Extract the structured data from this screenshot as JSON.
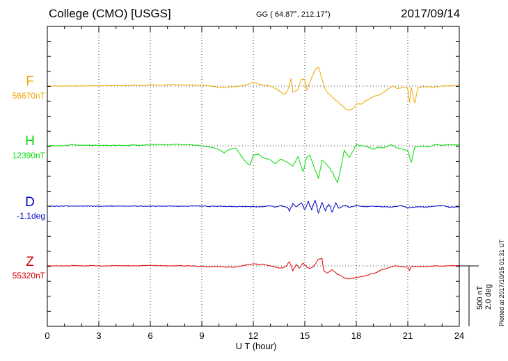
{
  "header": {
    "station": "College (CMO)  [USGS]",
    "coords": "GG ( 64.87°, 212.17°)",
    "date": "2017/09/14"
  },
  "plotted_note": "Plotted at 2017/10/15 01:31  UT",
  "scale": {
    "nt": "500 nT",
    "deg": "2.0 deg"
  },
  "colors": {
    "F": "#f0a800",
    "H": "#00dd00",
    "D": "#0000cc",
    "Z": "#dd0000"
  },
  "chart_data": {
    "type": "line",
    "xlabel": "U T (hour)",
    "xlim": [
      0,
      24
    ],
    "xticks": [
      "0",
      "3",
      "6",
      "9",
      "12",
      "15",
      "18",
      "21",
      "24"
    ],
    "grid": true,
    "series": [
      {
        "key": "F",
        "name": "F",
        "baseline_label": "56670nT",
        "units": "nT",
        "points": [
          [
            0,
            0
          ],
          [
            0.5,
            0
          ],
          [
            1,
            0
          ],
          [
            1.5,
            2
          ],
          [
            2,
            1
          ],
          [
            2.5,
            3
          ],
          [
            3,
            2
          ],
          [
            3.5,
            3
          ],
          [
            4,
            4
          ],
          [
            4.5,
            4
          ],
          [
            5,
            8
          ],
          [
            5.5,
            6
          ],
          [
            6,
            10
          ],
          [
            6.5,
            8
          ],
          [
            7,
            10
          ],
          [
            7.5,
            12
          ],
          [
            8,
            10
          ],
          [
            8.5,
            8
          ],
          [
            9,
            10
          ],
          [
            9.5,
            0
          ],
          [
            10,
            -10
          ],
          [
            10.5,
            -10
          ],
          [
            11,
            -5
          ],
          [
            11.5,
            5
          ],
          [
            12,
            30
          ],
          [
            12.2,
            20
          ],
          [
            12.5,
            10
          ],
          [
            13,
            0
          ],
          [
            13.3,
            -20
          ],
          [
            13.5,
            -40
          ],
          [
            13.8,
            -70
          ],
          [
            14,
            -40
          ],
          [
            14.2,
            60
          ],
          [
            14.3,
            -50
          ],
          [
            14.6,
            -30
          ],
          [
            14.8,
            60
          ],
          [
            15,
            50
          ],
          [
            15.1,
            -40
          ],
          [
            15.3,
            30
          ],
          [
            15.6,
            140
          ],
          [
            15.8,
            160
          ],
          [
            16,
            60
          ],
          [
            16.2,
            -30
          ],
          [
            16.5,
            -80
          ],
          [
            16.8,
            -120
          ],
          [
            17,
            -140
          ],
          [
            17.2,
            -170
          ],
          [
            17.5,
            -200
          ],
          [
            17.8,
            -190
          ],
          [
            18,
            -150
          ],
          [
            18.3,
            -150
          ],
          [
            18.6,
            -120
          ],
          [
            19,
            -90
          ],
          [
            19.4,
            -70
          ],
          [
            19.8,
            -30
          ],
          [
            20.1,
            0
          ],
          [
            20.4,
            -20
          ],
          [
            20.8,
            -10
          ],
          [
            21,
            -20
          ],
          [
            21.1,
            -130
          ],
          [
            21.2,
            -10
          ],
          [
            21.4,
            -140
          ],
          [
            21.6,
            -10
          ],
          [
            22,
            -5
          ],
          [
            22.5,
            -10
          ],
          [
            23,
            0
          ],
          [
            23.5,
            2
          ],
          [
            24,
            10
          ]
        ]
      },
      {
        "key": "H",
        "name": "H",
        "baseline_label": "12390nT",
        "units": "nT",
        "points": [
          [
            0,
            0
          ],
          [
            0.5,
            0
          ],
          [
            1,
            2
          ],
          [
            1.5,
            8
          ],
          [
            2,
            6
          ],
          [
            2.5,
            4
          ],
          [
            3,
            5
          ],
          [
            3.5,
            2
          ],
          [
            4,
            5
          ],
          [
            4.5,
            3
          ],
          [
            5,
            6
          ],
          [
            5.5,
            6
          ],
          [
            6,
            8
          ],
          [
            6.5,
            10
          ],
          [
            7,
            8
          ],
          [
            7.5,
            12
          ],
          [
            8,
            10
          ],
          [
            8.5,
            8
          ],
          [
            9,
            0
          ],
          [
            9.5,
            -10
          ],
          [
            10,
            -30
          ],
          [
            10.3,
            -60
          ],
          [
            10.6,
            -30
          ],
          [
            11,
            -20
          ],
          [
            11.3,
            -90
          ],
          [
            11.6,
            -140
          ],
          [
            11.8,
            -160
          ],
          [
            12,
            -80
          ],
          [
            12.3,
            -70
          ],
          [
            12.6,
            -100
          ],
          [
            13,
            -120
          ],
          [
            13.3,
            -150
          ],
          [
            13.6,
            -110
          ],
          [
            14,
            -140
          ],
          [
            14.3,
            -170
          ],
          [
            14.6,
            -90
          ],
          [
            14.9,
            -220
          ],
          [
            15.1,
            -100
          ],
          [
            15.3,
            -80
          ],
          [
            15.6,
            -200
          ],
          [
            15.8,
            -270
          ],
          [
            16,
            -120
          ],
          [
            16.3,
            -160
          ],
          [
            16.6,
            -220
          ],
          [
            16.9,
            -310
          ],
          [
            17.1,
            -190
          ],
          [
            17.3,
            -40
          ],
          [
            17.6,
            -100
          ],
          [
            18,
            10
          ],
          [
            18.3,
            0
          ],
          [
            18.6,
            -5
          ],
          [
            19,
            -30
          ],
          [
            19.3,
            -10
          ],
          [
            19.6,
            -20
          ],
          [
            20,
            10
          ],
          [
            20.4,
            -20
          ],
          [
            20.7,
            -30
          ],
          [
            21,
            -40
          ],
          [
            21.2,
            -140
          ],
          [
            21.4,
            -10
          ],
          [
            21.8,
            -5
          ],
          [
            22.2,
            -10
          ],
          [
            22.6,
            10
          ],
          [
            23,
            5
          ],
          [
            23.5,
            10
          ],
          [
            24,
            5
          ]
        ]
      },
      {
        "key": "D",
        "name": "D",
        "baseline_label": "-1.1deg",
        "units": "deg",
        "points": [
          [
            0,
            0
          ],
          [
            0.5,
            0
          ],
          [
            1,
            1
          ],
          [
            1.5,
            0
          ],
          [
            2,
            0
          ],
          [
            2.5,
            1
          ],
          [
            3,
            0
          ],
          [
            3.5,
            0
          ],
          [
            4,
            1
          ],
          [
            4.5,
            0
          ],
          [
            5,
            0
          ],
          [
            5.5,
            1
          ],
          [
            6,
            0
          ],
          [
            6.5,
            0
          ],
          [
            7,
            1
          ],
          [
            7.5,
            0
          ],
          [
            8,
            0
          ],
          [
            8.5,
            2
          ],
          [
            9,
            0
          ],
          [
            9.5,
            -2
          ],
          [
            10,
            -1
          ],
          [
            10.5,
            -2
          ],
          [
            11,
            -3
          ],
          [
            11.5,
            -2
          ],
          [
            12,
            -4
          ],
          [
            12.5,
            -5
          ],
          [
            13,
            5
          ],
          [
            13.3,
            -10
          ],
          [
            13.6,
            5
          ],
          [
            14,
            -10
          ],
          [
            14.1,
            -40
          ],
          [
            14.3,
            20
          ],
          [
            14.5,
            -5
          ],
          [
            14.8,
            30
          ],
          [
            15,
            -30
          ],
          [
            15.2,
            40
          ],
          [
            15.4,
            -30
          ],
          [
            15.6,
            50
          ],
          [
            15.8,
            -60
          ],
          [
            16,
            30
          ],
          [
            16.2,
            -40
          ],
          [
            16.4,
            20
          ],
          [
            16.6,
            -50
          ],
          [
            16.8,
            30
          ],
          [
            17,
            -20
          ],
          [
            17.3,
            10
          ],
          [
            17.6,
            -10
          ],
          [
            18,
            5
          ],
          [
            18.5,
            -5
          ],
          [
            19,
            0
          ],
          [
            19.5,
            -5
          ],
          [
            20,
            -8
          ],
          [
            20.3,
            -2
          ],
          [
            20.6,
            5
          ],
          [
            21,
            -15
          ],
          [
            21.3,
            -10
          ],
          [
            21.6,
            -5
          ],
          [
            22,
            -8
          ],
          [
            22.5,
            0
          ],
          [
            23,
            5
          ],
          [
            23.5,
            -10
          ],
          [
            24,
            -5
          ]
        ]
      },
      {
        "key": "Z",
        "name": "Z",
        "baseline_label": "55320nT",
        "units": "nT",
        "points": [
          [
            0,
            0
          ],
          [
            0.5,
            0
          ],
          [
            1,
            0
          ],
          [
            1.5,
            2
          ],
          [
            2,
            0
          ],
          [
            2.5,
            2
          ],
          [
            3,
            0
          ],
          [
            3.5,
            0
          ],
          [
            4,
            2
          ],
          [
            4.5,
            0
          ],
          [
            5,
            0
          ],
          [
            5.5,
            2
          ],
          [
            6,
            4
          ],
          [
            6.5,
            2
          ],
          [
            7,
            0
          ],
          [
            7.5,
            2
          ],
          [
            8,
            0
          ],
          [
            8.5,
            0
          ],
          [
            9,
            -5
          ],
          [
            9.5,
            -8
          ],
          [
            10,
            -5
          ],
          [
            10.5,
            -10
          ],
          [
            11,
            -8
          ],
          [
            11.5,
            5
          ],
          [
            12,
            20
          ],
          [
            12.3,
            10
          ],
          [
            12.6,
            15
          ],
          [
            13,
            0
          ],
          [
            13.3,
            -10
          ],
          [
            13.6,
            -20
          ],
          [
            13.9,
            -5
          ],
          [
            14.1,
            35
          ],
          [
            14.3,
            -40
          ],
          [
            14.5,
            10
          ],
          [
            14.7,
            -20
          ],
          [
            14.9,
            25
          ],
          [
            15.1,
            -10
          ],
          [
            15.3,
            -20
          ],
          [
            15.5,
            -5
          ],
          [
            15.8,
            55
          ],
          [
            16,
            60
          ],
          [
            16.1,
            -40
          ],
          [
            16.3,
            -60
          ],
          [
            16.6,
            -30
          ],
          [
            16.9,
            -70
          ],
          [
            17.1,
            -80
          ],
          [
            17.3,
            -100
          ],
          [
            17.6,
            -110
          ],
          [
            17.9,
            -100
          ],
          [
            18.2,
            -90
          ],
          [
            18.5,
            -85
          ],
          [
            18.8,
            -70
          ],
          [
            19.1,
            -60
          ],
          [
            19.5,
            -30
          ],
          [
            19.8,
            -20
          ],
          [
            20.2,
            0
          ],
          [
            20.6,
            -5
          ],
          [
            21,
            -10
          ],
          [
            21.1,
            -40
          ],
          [
            21.2,
            -5
          ],
          [
            21.5,
            -5
          ],
          [
            22,
            -5
          ],
          [
            22.5,
            0
          ],
          [
            23,
            -2
          ],
          [
            23.5,
            2
          ],
          [
            24,
            0
          ]
        ]
      }
    ]
  }
}
